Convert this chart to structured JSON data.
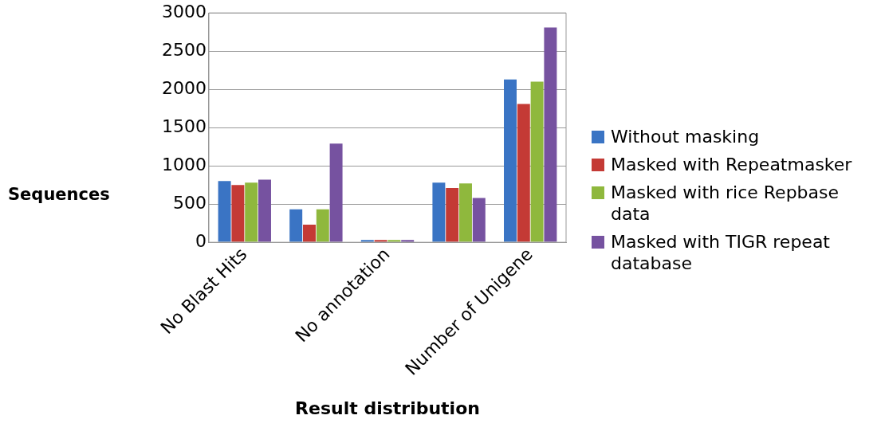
{
  "chart_data": {
    "type": "bar",
    "xlabel": "Result distribution",
    "ylabel": "Sequences",
    "categories": [
      "No Blast Hits",
      null,
      "No annotation",
      null,
      "Number of Unigene"
    ],
    "series": [
      {
        "name": "Without masking",
        "color": "#3a74c4",
        "values": [
          800,
          430,
          30,
          780,
          2130
        ]
      },
      {
        "name": "Masked with Repeatmasker",
        "color": "#c43a35",
        "values": [
          750,
          230,
          30,
          710,
          1810
        ]
      },
      {
        "name": "Masked with rice Repbase data",
        "color": "#8fb83d",
        "values": [
          780,
          430,
          30,
          770,
          2100
        ]
      },
      {
        "name": "Masked with TIGR repeat database",
        "color": "#7652a0",
        "values": [
          820,
          1290,
          30,
          580,
          2810
        ]
      }
    ],
    "ylim": [
      0,
      3000
    ],
    "yticks": [
      0,
      500,
      1000,
      1500,
      2000,
      2500,
      3000
    ],
    "grid": "y",
    "legend": "right"
  }
}
